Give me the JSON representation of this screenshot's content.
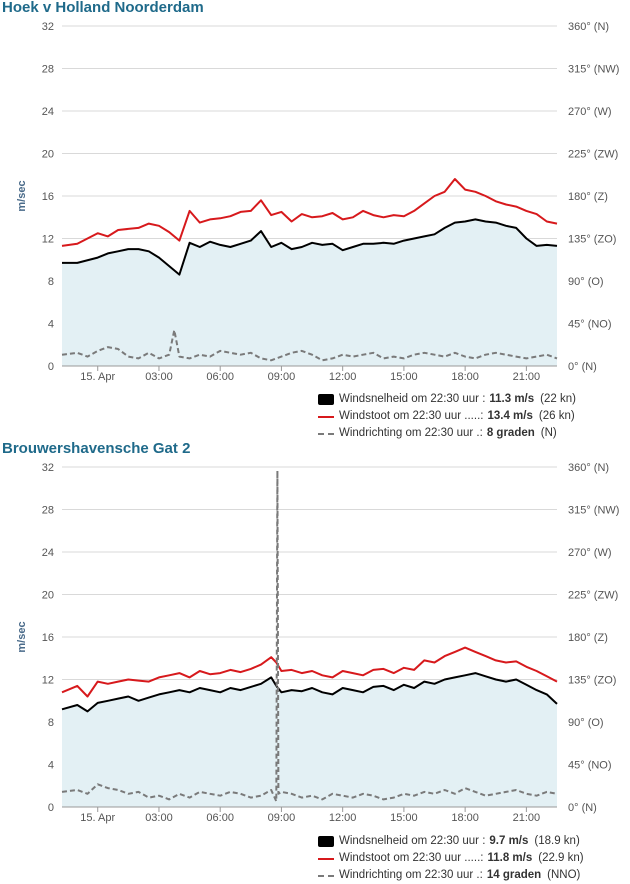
{
  "colors": {
    "title": "#1f6a8a",
    "fill": "#e3f0f4",
    "speed": "#000000",
    "gust": "#d7191c",
    "direction": "#7a7a7a",
    "grid": "#d9d9d9",
    "axis_text": "#555555"
  },
  "panels": [
    {
      "title": "Hoek v Holland Noorderdam",
      "legend": [
        {
          "label": "Windsnelheid om 22:30 uur :",
          "value": "11.3 m/s",
          "extra": "(22 kn)",
          "icon": "black-box"
        },
        {
          "label": "Windstoot om 22:30 uur .....:",
          "value": "13.4 m/s",
          "extra": "(26 kn)",
          "icon": "red-line"
        },
        {
          "label": "Windrichting om 22:30 uur .:",
          "value": "8 graden",
          "extra": "(N)",
          "icon": "grey-dashed-line"
        }
      ]
    },
    {
      "title": "Brouwershavensche Gat 2",
      "legend": [
        {
          "label": "Windsnelheid om 22:30 uur :",
          "value": "9.7 m/s",
          "extra": "(18.9 kn)",
          "icon": "black-box"
        },
        {
          "label": "Windstoot om 22:30 uur .....:",
          "value": "11.8 m/s",
          "extra": "(22.9 kn)",
          "icon": "red-line"
        },
        {
          "label": "Windrichting om 22:30 uur .:",
          "value": "14 graden",
          "extra": "(NNO)",
          "icon": "grey-dashed-line"
        }
      ]
    }
  ],
  "chart_data": [
    {
      "type": "line",
      "title": "Hoek v Holland Noorderdam",
      "ylabel": "m/sec",
      "ylim": [
        0,
        32
      ],
      "y_ticks": [
        0,
        4,
        8,
        12,
        16,
        20,
        24,
        28,
        32
      ],
      "y2lim": [
        0,
        360
      ],
      "y2_ticks": [
        "0° (N)",
        "45° (NO)",
        "90° (O)",
        "135° (ZO)",
        "180° (Z)",
        "225° (ZW)",
        "270° (W)",
        "315° (NW)",
        "360° (N)"
      ],
      "x_unit": "hours since 00:00",
      "xlim": [
        -1.75,
        22.5
      ],
      "x_ticks": [
        {
          "x": 0,
          "label": "15. Apr"
        },
        {
          "x": 3,
          "label": "03:00"
        },
        {
          "x": 6,
          "label": "06:00"
        },
        {
          "x": 9,
          "label": "09:00"
        },
        {
          "x": 12,
          "label": "12:00"
        },
        {
          "x": 15,
          "label": "15:00"
        },
        {
          "x": 18,
          "label": "18:00"
        },
        {
          "x": 21,
          "label": "21:00"
        }
      ],
      "grid": true,
      "legend_position": "bottom-right",
      "series": [
        {
          "name": "Windsnelheid",
          "axis": "left",
          "style": "solid-black",
          "fill": true,
          "x": [
            -1.75,
            -1,
            0,
            0.5,
            1,
            1.5,
            2,
            2.5,
            3,
            3.5,
            4,
            4.5,
            5,
            5.5,
            6,
            6.5,
            7,
            7.5,
            8,
            8.5,
            9,
            9.5,
            10,
            10.5,
            11,
            11.5,
            12,
            12.5,
            13,
            13.5,
            14,
            14.5,
            15,
            15.5,
            16,
            16.5,
            17,
            17.5,
            18,
            18.5,
            19,
            19.5,
            20,
            20.5,
            21,
            21.5,
            22,
            22.5
          ],
          "values": [
            9.7,
            9.7,
            10.2,
            10.6,
            10.8,
            11.0,
            11.0,
            10.8,
            10.2,
            9.4,
            8.6,
            11.6,
            11.2,
            11.7,
            11.4,
            11.2,
            11.5,
            11.8,
            12.7,
            11.2,
            11.6,
            11.0,
            11.2,
            11.6,
            11.4,
            11.5,
            10.9,
            11.2,
            11.5,
            11.5,
            11.6,
            11.5,
            11.8,
            12.0,
            12.2,
            12.4,
            13.0,
            13.5,
            13.6,
            13.8,
            13.6,
            13.5,
            13.2,
            13.0,
            12.0,
            11.3,
            11.4,
            11.3
          ]
        },
        {
          "name": "Windstoot",
          "axis": "left",
          "style": "solid-red",
          "x": [
            -1.75,
            -1,
            0,
            0.5,
            1,
            1.5,
            2,
            2.5,
            3,
            3.5,
            4,
            4.5,
            5,
            5.5,
            6,
            6.5,
            7,
            7.5,
            8,
            8.5,
            9,
            9.5,
            10,
            10.5,
            11,
            11.5,
            12,
            12.5,
            13,
            13.5,
            14,
            14.5,
            15,
            15.5,
            16,
            16.5,
            17,
            17.5,
            18,
            18.5,
            19,
            19.5,
            20,
            20.5,
            21,
            21.5,
            22,
            22.5
          ],
          "values": [
            11.3,
            11.5,
            12.5,
            12.2,
            12.8,
            12.9,
            13.0,
            13.4,
            13.2,
            12.6,
            11.8,
            14.6,
            13.5,
            13.8,
            13.9,
            14.1,
            14.5,
            14.6,
            15.6,
            14.2,
            14.5,
            13.6,
            14.3,
            14.0,
            14.1,
            14.4,
            13.8,
            14.0,
            14.6,
            14.2,
            14.0,
            14.2,
            14.1,
            14.6,
            15.3,
            16.0,
            16.4,
            17.6,
            16.6,
            16.4,
            16.0,
            15.5,
            15.2,
            15.0,
            14.6,
            14.3,
            13.6,
            13.4
          ]
        },
        {
          "name": "Windrichting",
          "axis": "right",
          "style": "dashed-grey",
          "x": [
            -1.75,
            -1,
            -0.5,
            0,
            0.5,
            1,
            1.5,
            2,
            2.5,
            3,
            3.5,
            3.75,
            4,
            4.5,
            5,
            5.5,
            6,
            6.5,
            7,
            7.5,
            8,
            8.5,
            9,
            9.5,
            10,
            10.5,
            11,
            11.5,
            12,
            12.5,
            13,
            13.5,
            14,
            14.5,
            15,
            15.5,
            16,
            16.5,
            17,
            17.5,
            18,
            18.5,
            19,
            19.5,
            20,
            20.5,
            21,
            21.5,
            22,
            22.5
          ],
          "values": [
            12,
            14,
            10,
            16,
            20,
            18,
            10,
            8,
            14,
            8,
            12,
            38,
            10,
            8,
            12,
            10,
            16,
            14,
            12,
            14,
            8,
            6,
            10,
            14,
            16,
            12,
            6,
            8,
            12,
            10,
            12,
            14,
            8,
            10,
            8,
            12,
            14,
            12,
            10,
            14,
            10,
            8,
            12,
            14,
            12,
            10,
            8,
            10,
            12,
            8
          ]
        }
      ]
    },
    {
      "type": "line",
      "title": "Brouwershavensche Gat 2",
      "ylabel": "m/sec",
      "ylim": [
        0,
        32
      ],
      "y_ticks": [
        0,
        4,
        8,
        12,
        16,
        20,
        24,
        28,
        32
      ],
      "y2lim": [
        0,
        360
      ],
      "y2_ticks": [
        "0° (N)",
        "45° (NO)",
        "90° (O)",
        "135° (ZO)",
        "180° (Z)",
        "225° (ZW)",
        "270° (W)",
        "315° (NW)",
        "360° (N)"
      ],
      "x_unit": "hours since 00:00",
      "xlim": [
        -1.75,
        22.5
      ],
      "x_ticks": [
        {
          "x": 0,
          "label": "15. Apr"
        },
        {
          "x": 3,
          "label": "03:00"
        },
        {
          "x": 6,
          "label": "06:00"
        },
        {
          "x": 9,
          "label": "09:00"
        },
        {
          "x": 12,
          "label": "12:00"
        },
        {
          "x": 15,
          "label": "15:00"
        },
        {
          "x": 18,
          "label": "18:00"
        },
        {
          "x": 21,
          "label": "21:00"
        }
      ],
      "grid": true,
      "legend_position": "bottom-right",
      "series": [
        {
          "name": "Windsnelheid",
          "axis": "left",
          "style": "solid-black",
          "fill": true,
          "x": [
            -1.75,
            -1,
            -0.5,
            0,
            0.5,
            1,
            1.5,
            2,
            2.5,
            3,
            3.5,
            4,
            4.5,
            5,
            5.5,
            6,
            6.5,
            7,
            7.5,
            8,
            8.5,
            8.75,
            9,
            9.5,
            10,
            10.5,
            11,
            11.5,
            12,
            12.5,
            13,
            13.5,
            14,
            14.5,
            15,
            15.5,
            16,
            16.5,
            17,
            17.5,
            18,
            18.5,
            19,
            19.5,
            20,
            20.5,
            21,
            21.5,
            22,
            22.5
          ],
          "values": [
            9.2,
            9.6,
            9.0,
            9.8,
            10.0,
            10.2,
            10.4,
            10.0,
            10.3,
            10.6,
            10.8,
            11.0,
            10.8,
            11.2,
            11.0,
            10.8,
            11.2,
            11.0,
            11.3,
            11.6,
            12.2,
            11.4,
            10.8,
            11.0,
            10.9,
            11.2,
            10.8,
            10.6,
            11.2,
            11.0,
            10.8,
            11.3,
            11.4,
            11.0,
            11.5,
            11.2,
            11.8,
            11.6,
            12.0,
            12.2,
            12.4,
            12.6,
            12.3,
            12.0,
            11.8,
            12.0,
            11.5,
            11.0,
            10.6,
            9.7
          ]
        },
        {
          "name": "Windstoot",
          "axis": "left",
          "style": "solid-red",
          "x": [
            -1.75,
            -1,
            -0.5,
            0,
            0.5,
            1,
            1.5,
            2,
            2.5,
            3,
            3.5,
            4,
            4.5,
            5,
            5.5,
            6,
            6.5,
            7,
            7.5,
            8,
            8.5,
            8.75,
            9,
            9.5,
            10,
            10.5,
            11,
            11.5,
            12,
            12.5,
            13,
            13.5,
            14,
            14.5,
            15,
            15.5,
            16,
            16.5,
            17,
            17.5,
            18,
            18.5,
            19,
            19.5,
            20,
            20.5,
            21,
            21.5,
            22,
            22.5
          ],
          "values": [
            10.8,
            11.4,
            10.4,
            11.8,
            11.6,
            11.8,
            12.0,
            11.9,
            11.8,
            12.2,
            12.4,
            12.6,
            12.2,
            12.8,
            12.5,
            12.6,
            12.9,
            12.7,
            13.0,
            13.4,
            14.1,
            13.6,
            12.8,
            12.9,
            12.6,
            12.8,
            12.4,
            12.2,
            12.8,
            12.6,
            12.4,
            12.9,
            13.0,
            12.6,
            13.1,
            12.9,
            13.8,
            13.6,
            14.2,
            14.6,
            15.0,
            14.6,
            14.2,
            13.8,
            13.6,
            13.7,
            13.2,
            12.8,
            12.3,
            11.8
          ]
        },
        {
          "name": "Windrichting",
          "axis": "right",
          "style": "dashed-grey",
          "x": [
            -1.75,
            -1,
            -0.5,
            0,
            0.5,
            1,
            1.5,
            2,
            2.5,
            3,
            3.5,
            4,
            4.5,
            5,
            5.5,
            6,
            6.5,
            7,
            7.5,
            8,
            8.5,
            8.75,
            8.8,
            8.85,
            9,
            9.5,
            10,
            10.5,
            11,
            11.5,
            12,
            12.5,
            13,
            13.5,
            14,
            14.5,
            15,
            15.5,
            16,
            16.5,
            17,
            17.5,
            18,
            18.5,
            19,
            19.5,
            20,
            20.5,
            21,
            21.5,
            22,
            22.5
          ],
          "values": [
            16,
            18,
            14,
            24,
            20,
            18,
            14,
            16,
            10,
            12,
            8,
            14,
            10,
            16,
            14,
            12,
            16,
            14,
            10,
            12,
            18,
            6,
            356,
            14,
            16,
            14,
            10,
            12,
            8,
            14,
            12,
            10,
            14,
            12,
            8,
            10,
            14,
            12,
            16,
            14,
            18,
            14,
            20,
            16,
            12,
            14,
            16,
            18,
            14,
            12,
            16,
            14
          ]
        }
      ]
    }
  ]
}
